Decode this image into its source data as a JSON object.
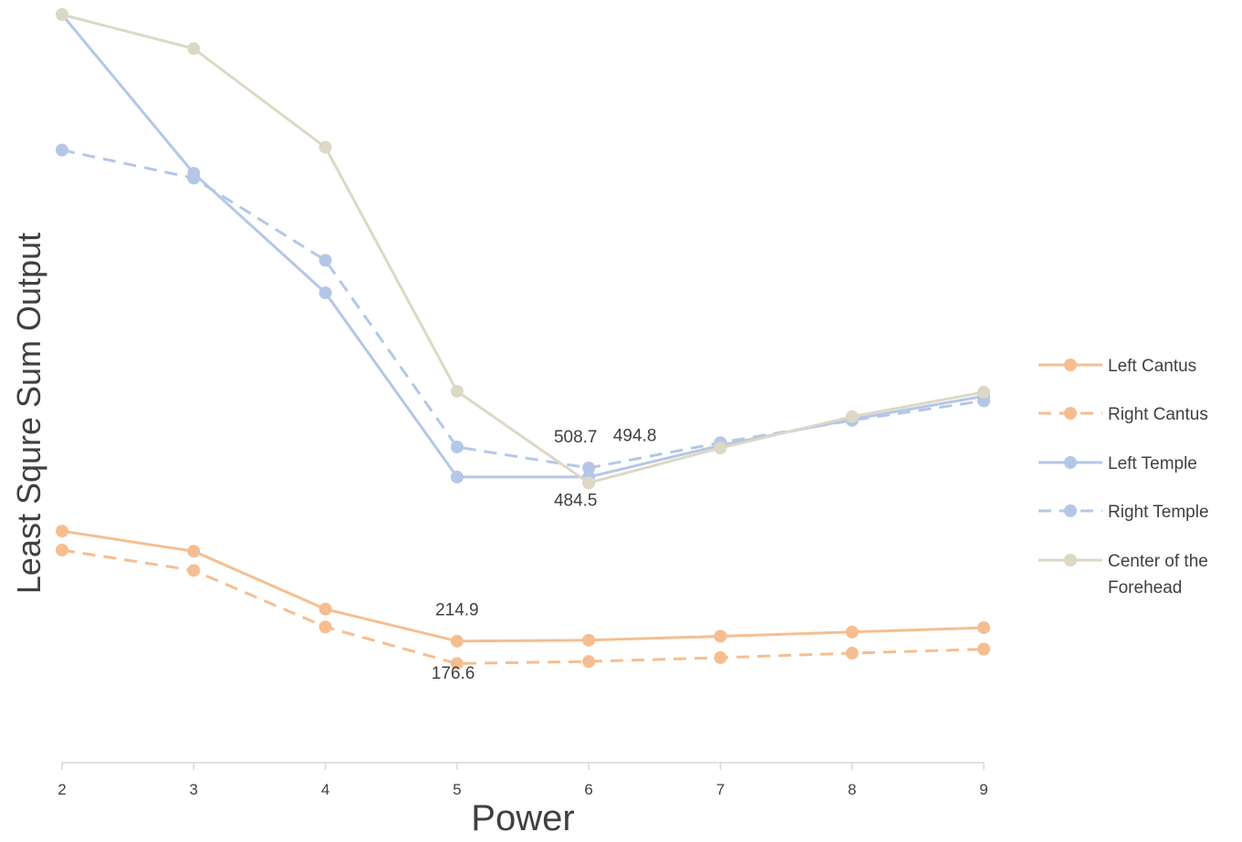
{
  "chart_data": {
    "type": "line",
    "xlabel": "Power",
    "ylabel": "Least Squre Sum Output",
    "x": [
      2,
      3,
      4,
      5,
      6,
      7,
      8,
      9
    ],
    "xlim": [
      2,
      9
    ],
    "ylim": [
      0,
      1000
    ],
    "grid": false,
    "legend_position": "right",
    "series": [
      {
        "name": "Left Cantus",
        "color": "#F6BE90",
        "dash": "solid",
        "values": [
          309.5,
          282.6,
          205.3,
          162.4,
          163.6,
          168.9,
          174.6,
          180.4
        ]
      },
      {
        "name": "Right Cantus",
        "color": "#F6BE90",
        "dash": "dashed",
        "values": [
          284.2,
          256.9,
          181.4,
          132.4,
          135.2,
          140.4,
          146.3,
          151.7
        ]
      },
      {
        "name": "Left Temple",
        "color": "#B4C7E7",
        "dash": "solid",
        "values": [
          1000.0,
          787.8,
          628.1,
          381.8,
          381.8,
          424.2,
          459.0,
          489.9
        ]
      },
      {
        "name": "Right Temple",
        "color": "#B4C7E7",
        "dash": "dashed",
        "values": [
          818.9,
          781.3,
          671.5,
          422.0,
          393.9,
          427.8,
          457.5,
          483.6
        ]
      },
      {
        "name": "Center of the Forehead",
        "color": "#DDD8C4",
        "dash": "solid",
        "values": [
          1000.0,
          954.5,
          822.6,
          496.4,
          374.0,
          420.6,
          462.6,
          495.2
        ]
      }
    ],
    "annotations": [
      {
        "text": "508.7"
      },
      {
        "text": "494.8"
      },
      {
        "text": "484.5"
      },
      {
        "text": "214.9"
      },
      {
        "text": "176.6"
      }
    ]
  }
}
